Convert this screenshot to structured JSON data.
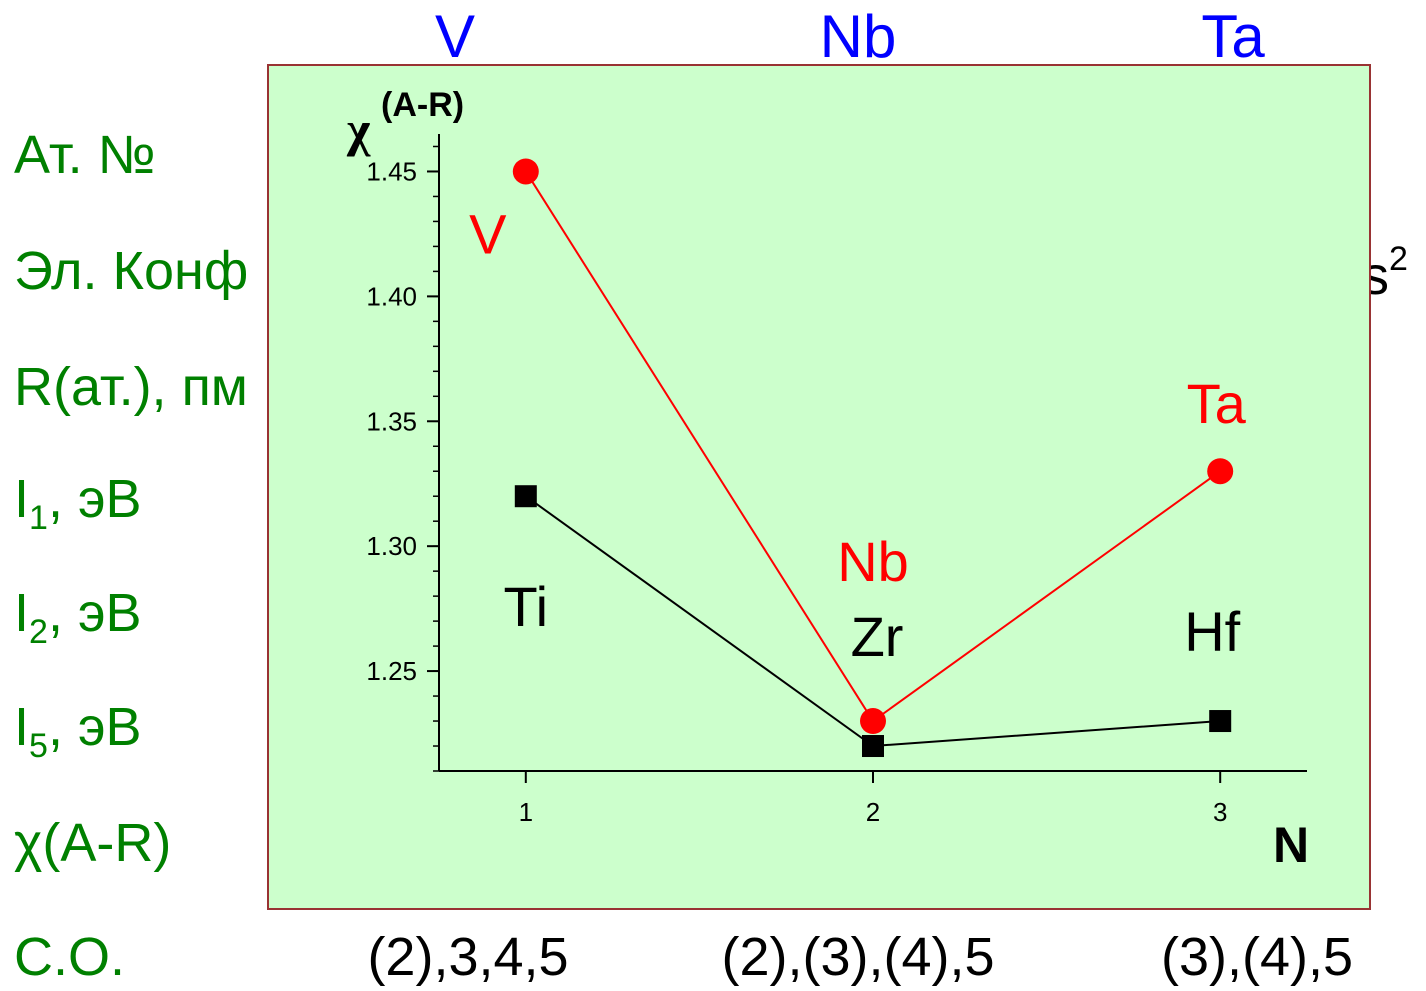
{
  "column_headers": [
    "V",
    "Nb",
    "Ta"
  ],
  "row_labels": [
    {
      "text": "Ат. №",
      "sub": "",
      "rest": ""
    },
    {
      "text": "Эл. Конф",
      "sub": "",
      "rest": ""
    },
    {
      "text": "R(ат.), пм",
      "sub": "",
      "rest": ""
    },
    {
      "text": "I",
      "sub": "1",
      "rest": ", эВ"
    },
    {
      "text": "I",
      "sub": "2",
      "rest": ", эВ"
    },
    {
      "text": "I",
      "sub": "5",
      "rest": ", эВ"
    },
    {
      "text": "χ(A-R)",
      "sub": "",
      "rest": ""
    },
    {
      "text": "С.О.",
      "sub": "",
      "rest": ""
    }
  ],
  "overflow_fragment": {
    "text": "s",
    "sup": "2"
  },
  "oxidation_states": [
    "(2),3,4,5",
    "(2),(3),(4),5",
    "(3),(4),5"
  ],
  "colors": {
    "header_blue": "#0000ff",
    "label_green": "#008000",
    "panel_bg": "#ccffcc",
    "panel_border": "#993333",
    "series_red": "#ff0000",
    "series_black": "#000000"
  },
  "chart_data": {
    "type": "line",
    "ylabel": "χ",
    "ylabel_sup": "(A-R)",
    "xlabel": "N",
    "x": [
      1,
      2,
      3
    ],
    "x_tick_labels": [
      "1",
      "2",
      "3"
    ],
    "xlim": [
      0.75,
      3.25
    ],
    "ylim": [
      1.21,
      1.465
    ],
    "y_ticks": [
      1.25,
      1.3,
      1.35,
      1.4,
      1.45
    ],
    "y_tick_labels": [
      "1.25",
      "1.30",
      "1.35",
      "1.40",
      "1.45"
    ],
    "series": [
      {
        "color": "#ff0000",
        "marker": "circle",
        "values": [
          1.45,
          1.23,
          1.33
        ],
        "point_labels": [
          "V",
          "Nb",
          "Ta"
        ]
      },
      {
        "color": "#000000",
        "marker": "square",
        "values": [
          1.32,
          1.22,
          1.23
        ],
        "point_labels": [
          "Ti",
          "Zr",
          "Hf"
        ]
      }
    ]
  }
}
